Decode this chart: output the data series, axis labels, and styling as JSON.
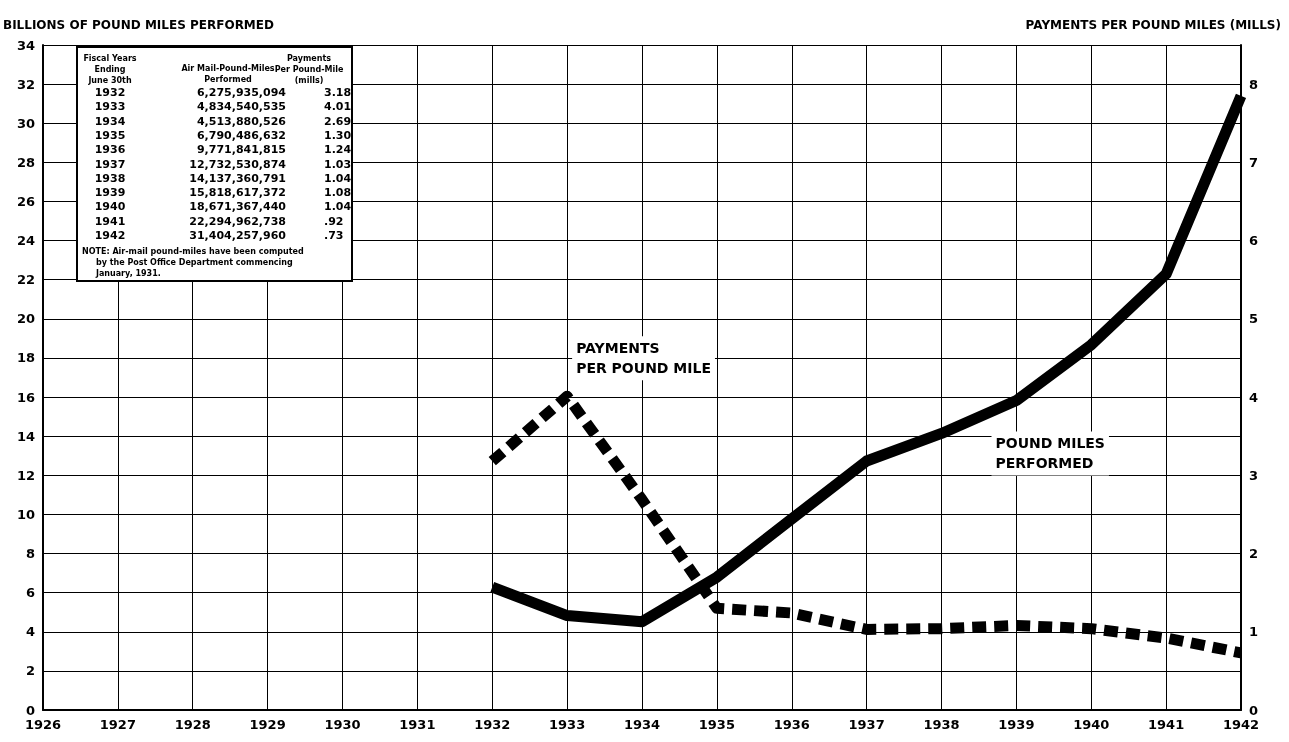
{
  "chart_data": {
    "type": "line",
    "ylabel": "BILLIONS OF POUND MILES PERFORMED",
    "y2label": "PAYMENTS PER POUND MILES (MILLS)",
    "x": [
      1932,
      1933,
      1934,
      1935,
      1936,
      1937,
      1938,
      1939,
      1940,
      1941,
      1942
    ],
    "series": [
      {
        "name": "POUND MILES\nPERFORMED",
        "color": "#000000",
        "line_style": "solid",
        "values": [
          6.28,
          4.83,
          4.51,
          6.79,
          9.77,
          12.73,
          14.14,
          15.82,
          18.67,
          22.29,
          31.4
        ]
      },
      {
        "name": "PAYMENTS\nPER POUND MILE",
        "color": "#000000",
        "line_style": "dashed",
        "axis": "y2",
        "values": [
          3.18,
          4.01,
          2.69,
          1.3,
          1.24,
          1.03,
          1.04,
          1.08,
          1.04,
          0.92,
          0.73
        ]
      }
    ],
    "xlim": [
      1926,
      1942
    ],
    "xticks": [
      1926,
      1927,
      1928,
      1929,
      1930,
      1931,
      1932,
      1933,
      1934,
      1935,
      1936,
      1937,
      1938,
      1939,
      1940,
      1941,
      1942
    ],
    "ylim": [
      0,
      34
    ],
    "yticks": [
      0,
      2,
      4,
      6,
      8,
      10,
      12,
      14,
      16,
      18,
      20,
      22,
      24,
      26,
      28,
      30,
      32,
      34
    ],
    "y2lim": [
      0,
      8.5
    ],
    "y2ticks": [
      0,
      1,
      2,
      3,
      4,
      5,
      6,
      7,
      8
    ],
    "grid": true,
    "legend": false,
    "marker": "none",
    "annotations": [
      "Fiscal Years\nEnding\nJune 30th",
      "Air Mail-Pound-Miles\nPerformed",
      "Payments\nPer Pound-Mile\n(mills)",
      "1932",
      "6,275,935,094",
      "3.18",
      "1933",
      "4,834,540,535",
      "4.01",
      "1934",
      "4,513,880,526",
      "2.69",
      "1935",
      "6,790,486,632",
      "1.30",
      "1936",
      "9,771,841,815",
      "1.24",
      "1937",
      "12,732,530,874",
      "1.03",
      "1938",
      "14,137,360,791",
      "1.04",
      "1939",
      "15,818,617,372",
      "1.08",
      "1940",
      "18,671,367,440",
      "1.04",
      "1941",
      "22,294,962,738",
      ".92",
      "1942",
      "31,404,257,960",
      ".73",
      "NOTE: Air-mail pound-miles have been computed\n     by the Post Office Department commencing\n     January, 1931."
    ]
  }
}
